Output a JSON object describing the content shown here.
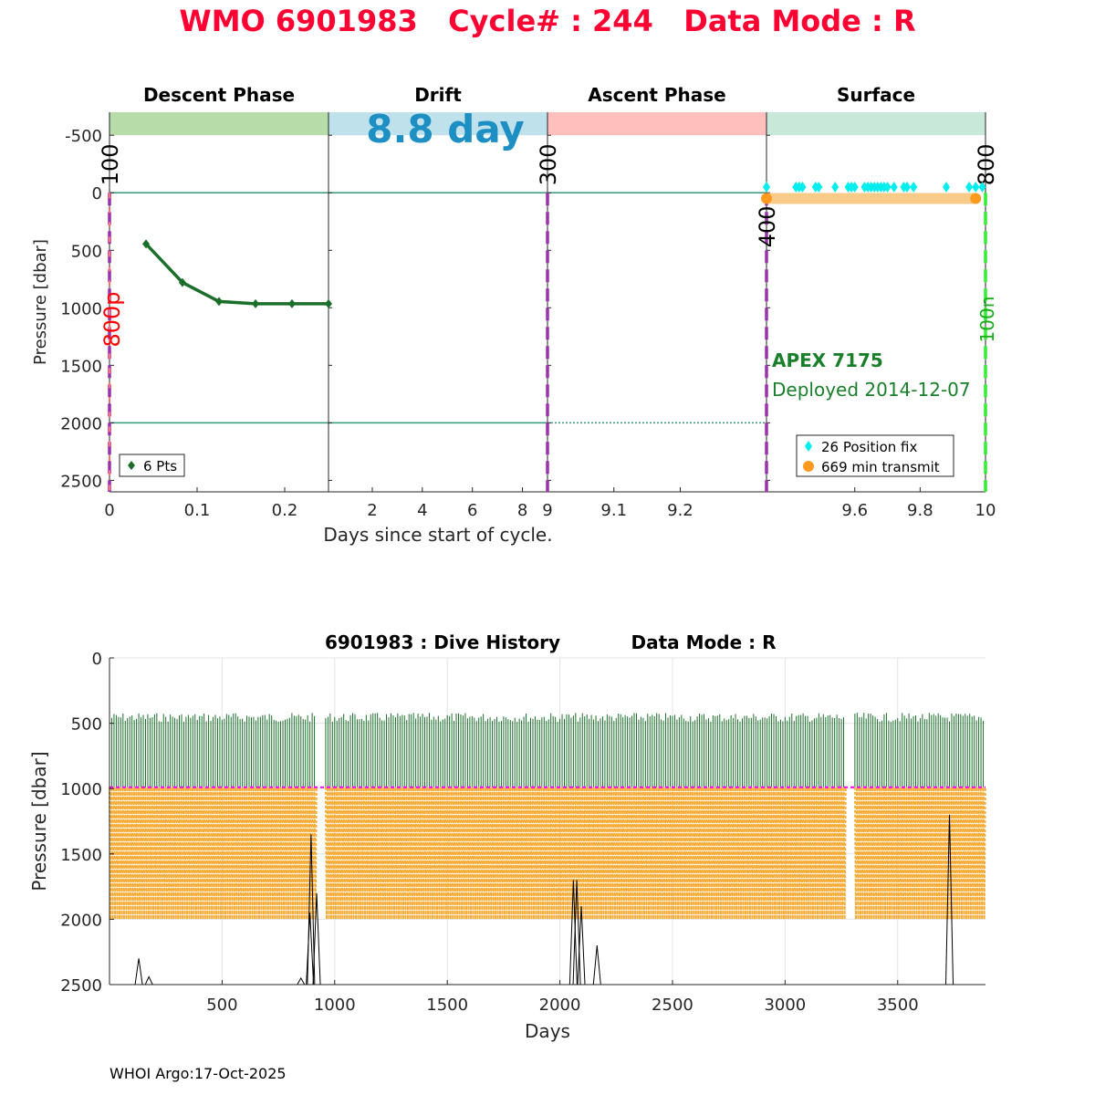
{
  "title": "WMO 6901983   Cycle# : 244   Data Mode : R",
  "footer": "WHOI Argo:17-Oct-2025",
  "colors": {
    "title": "#ff0033",
    "descent": "#b8dbaa",
    "drift": "#bfe1ec",
    "ascent": "#ffbfbc",
    "surface": "#c8e9d9",
    "profile": "#1a6f2a",
    "position_fix": "#00eeee",
    "transmit": "#ff9a1f",
    "transmit_bar": "#f8cb88",
    "mark_line": "#9933aa",
    "start_line": "#ff6f6f",
    "end_line": "#33ee33",
    "ref_line": "#33997a",
    "drift_label": "#1e8fc3",
    "float_info": "#1a7f2a",
    "history_drift": "#1a6f2a",
    "history_profile": "#f5ab35",
    "history_park": "#ff00ff"
  },
  "chart_data": [
    {
      "type": "line",
      "name": "cycle-timeline",
      "phases": [
        {
          "label": "Descent Phase",
          "x_range": [
            0,
            0.25
          ],
          "xticks": [
            0,
            0.1,
            0.2
          ]
        },
        {
          "label": "Drift",
          "x_range": [
            0.25,
            9
          ],
          "xticks": [
            2,
            4,
            6,
            8
          ]
        },
        {
          "label": "Ascent Phase",
          "x_range": [
            9,
            9.33
          ],
          "xticks": [
            9,
            9.1,
            9.2
          ]
        },
        {
          "label": "Surface",
          "x_range": [
            9.33,
            10
          ],
          "xticks": [
            9.6,
            9.8,
            10
          ]
        }
      ],
      "drift_label": "8.8 day",
      "xlabel": "Days since start of cycle.",
      "ylabel": "Pressure [dbar]",
      "ylim": [
        2600,
        -700
      ],
      "yticks": [
        -500,
        0,
        500,
        1000,
        1500,
        2000,
        2500
      ],
      "ytick_labels": [
        "-500",
        "0",
        "500",
        "1000",
        "1500",
        "2000",
        "2500"
      ],
      "reference_lines": [
        0,
        2000
      ],
      "event_marks": [
        {
          "day": 0,
          "label": "100",
          "color": "mark_line"
        },
        {
          "day": 9,
          "label": "300",
          "color": "mark_line"
        },
        {
          "day": 9.33,
          "label": "400",
          "color": "mark_line"
        },
        {
          "day": 10,
          "label": "800",
          "color": "end_line"
        }
      ],
      "side_labels": {
        "start": "800p",
        "end": "100n"
      },
      "descent_profile": {
        "x": [
          0.0417,
          0.0833,
          0.125,
          0.1667,
          0.2083,
          0.25
        ],
        "y": [
          445,
          780,
          945,
          965,
          965,
          965
        ]
      },
      "position_fix_days": [
        9.33,
        9.42,
        9.43,
        9.44,
        9.48,
        9.49,
        9.54,
        9.58,
        9.59,
        9.6,
        9.63,
        9.64,
        9.65,
        9.66,
        9.67,
        9.68,
        9.69,
        9.7,
        9.72,
        9.75,
        9.76,
        9.78,
        9.88,
        9.95,
        9.97,
        9.99
      ],
      "transmit_range": [
        9.33,
        9.97
      ],
      "float_model": "APEX 7175",
      "deployed": "Deployed 2014-12-07",
      "legend_descent": "6 Pts",
      "legend_fix": "26 Position fix",
      "legend_transmit": "669 min transmit"
    },
    {
      "type": "line",
      "name": "dive-history",
      "title_left": "6901983 : Dive History",
      "title_right": "Data Mode : R",
      "xlabel": "Days",
      "ylabel": "Pressure [dbar]",
      "xlim": [
        0,
        3890
      ],
      "xticks": [
        500,
        1000,
        1500,
        2000,
        2500,
        3000,
        3500
      ],
      "ylim": [
        2500,
        0
      ],
      "yticks": [
        0,
        500,
        1000,
        1500,
        2000,
        2500
      ],
      "cycle_days": 10,
      "num_cycles": 389,
      "gaps_days": [
        [
          915,
          955
        ],
        [
          3270,
          3300
        ]
      ],
      "drift_top_range": [
        420,
        490
      ],
      "park_pressure": 990,
      "profile_pressure": 2000,
      "bottom_spikes": [
        {
          "day": 130,
          "depth": 2300
        },
        {
          "day": 175,
          "depth": 2440
        },
        {
          "day": 850,
          "depth": 2450
        },
        {
          "day": 890,
          "depth": 1950
        },
        {
          "day": 895,
          "depth": 1350
        },
        {
          "day": 920,
          "depth": 1800
        },
        {
          "day": 2060,
          "depth": 1700
        },
        {
          "day": 2075,
          "depth": 1700
        },
        {
          "day": 2095,
          "depth": 1900
        },
        {
          "day": 2165,
          "depth": 2200
        },
        {
          "day": 3730,
          "depth": 1200
        }
      ]
    }
  ]
}
